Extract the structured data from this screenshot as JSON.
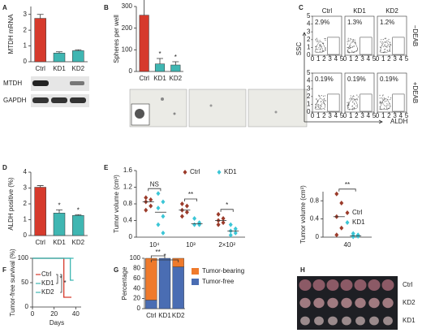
{
  "chart_data": [
    {
      "panel": "A",
      "type": "bar",
      "ylabel": "MTDH mRNA",
      "categories": [
        "Ctrl",
        "KD1",
        "KD2"
      ],
      "values": [
        2.75,
        0.55,
        0.7
      ],
      "errors": [
        0.25,
        0.08,
        0.06
      ],
      "colors": [
        "#d63a2c",
        "#3fb6b2",
        "#3fb6b2"
      ],
      "ylim": [
        0,
        3.5
      ],
      "yticks": [
        0,
        1,
        2,
        3
      ],
      "blot_labels": [
        "MTDH",
        "GAPDH"
      ]
    },
    {
      "panel": "B",
      "type": "bar",
      "ylabel": "Spheres per well",
      "categories": [
        "Ctrl",
        "KD1",
        "KD2"
      ],
      "values": [
        260,
        35,
        30
      ],
      "errors": [
        85,
        25,
        15
      ],
      "colors": [
        "#d63a2c",
        "#3fb6b2",
        "#3fb6b2"
      ],
      "significance": [
        null,
        "*",
        "*"
      ],
      "ylim": [
        0,
        300
      ],
      "yticks": [
        0,
        100,
        200,
        300
      ]
    },
    {
      "panel": "C",
      "type": "flow",
      "xlabel": "ALDH",
      "ylabel": "SSC",
      "columns": [
        "Ctrl",
        "KD1",
        "KD2"
      ],
      "rows": [
        "−DEAB",
        "+DEAB"
      ],
      "values": [
        [
          2.9,
          1.3,
          1.2
        ],
        [
          0.19,
          0.19,
          0.19
        ]
      ],
      "value_labels": [
        [
          "2.9%",
          "1.3%",
          "1.2%"
        ],
        [
          "0.19%",
          "0.19%",
          "0.19%"
        ]
      ],
      "xticks": [
        0,
        1,
        2,
        3,
        4,
        5
      ],
      "yticks": [
        0,
        1,
        2,
        3,
        4,
        5
      ],
      "xlim": [
        0,
        5
      ],
      "ylim": [
        0,
        5
      ]
    },
    {
      "panel": "D",
      "type": "bar",
      "ylabel": "ALDH positive (%)",
      "categories": [
        "Ctrl",
        "KD1",
        "KD2"
      ],
      "values": [
        3.05,
        1.42,
        1.27
      ],
      "errors": [
        0.1,
        0.2,
        0.05
      ],
      "colors": [
        "#d63a2c",
        "#3fb6b2",
        "#3fb6b2"
      ],
      "significance": [
        null,
        "*",
        "*"
      ],
      "ylim": [
        0,
        4
      ],
      "yticks": [
        0,
        1,
        2,
        3,
        4
      ]
    },
    {
      "panel": "E",
      "type": "strip",
      "ylabel": "Tumor volume (cm³)",
      "categories": [
        "10⁴",
        "10³",
        "2×10²"
      ],
      "series": [
        {
          "name": "Ctrl",
          "color": "#9b3b2a",
          "values": [
            [
              0.95,
              0.9,
              0.85,
              0.75,
              0.65
            ],
            [
              0.8,
              0.75,
              0.65,
              0.6,
              0.5
            ],
            [
              0.55,
              0.45,
              0.4,
              0.35,
              0.3
            ]
          ]
        },
        {
          "name": "KD1",
          "color": "#3cc6d6",
          "values": [
            [
              1.05,
              0.85,
              0.7,
              0.5,
              0.3,
              0.1
            ],
            [
              0.45,
              0.35,
              0.3,
              0.3
            ],
            [
              0.3,
              0.2,
              0.15,
              0.1,
              0.05
            ]
          ]
        }
      ],
      "significance": [
        "NS",
        "**",
        "*"
      ],
      "legend": "top",
      "ylim": [
        0,
        1.6
      ],
      "yticks": [
        0,
        0.4,
        0.8,
        1.2,
        1.6
      ]
    },
    {
      "type": "strip",
      "ylabel": "Tumor volume (cm³)",
      "categories": [
        "40"
      ],
      "series": [
        {
          "name": "Ctrl",
          "color": "#9b3b2a",
          "values": [
            [
              0.95,
              0.75,
              0.45,
              0.2,
              0.05
            ]
          ]
        },
        {
          "name": "KD1",
          "color": "#3cc6d6",
          "values": [
            [
              0.08,
              0.05,
              0.03,
              0.02,
              0.01
            ]
          ]
        }
      ],
      "significance": [
        "**"
      ],
      "legend": "right",
      "ylim": [
        0,
        1
      ],
      "yticks": [
        0,
        0.4,
        0.8
      ]
    },
    {
      "panel": "F",
      "type": "line",
      "ylabel": "Tumor-free survival (%)",
      "xlabel": "Days",
      "series": [
        {
          "name": "Ctrl",
          "color": "#d63a2c",
          "x": [
            0,
            29,
            29,
            36
          ],
          "values": [
            100,
            100,
            20,
            20
          ]
        },
        {
          "name": "KD1",
          "color": "#3fb6b2",
          "x": [
            0,
            38
          ],
          "values": [
            100,
            100
          ]
        },
        {
          "name": "KD2",
          "color": "#3fb6b2",
          "x": [
            0,
            35,
            35,
            38
          ],
          "values": [
            100,
            100,
            55,
            55
          ]
        }
      ],
      "significance": [
        "*",
        "*"
      ],
      "xlim": [
        0,
        45
      ],
      "xticks": [
        0,
        20,
        40
      ],
      "ylim": [
        0,
        100
      ],
      "yticks": [
        0,
        50,
        100
      ]
    },
    {
      "panel": "G",
      "type": "stacked_bar",
      "ylabel": "Percentage",
      "categories": [
        "Ctrl",
        "KD1",
        "KD2"
      ],
      "series": [
        {
          "name": "Tumor-free",
          "color": "#4a6db3",
          "values": [
            17,
            100,
            83
          ]
        },
        {
          "name": "Tumor-bearing",
          "color": "#ef7a2c",
          "values": [
            83,
            0,
            17
          ]
        }
      ],
      "significance": [
        null,
        "**",
        "*"
      ],
      "ylim": [
        0,
        100
      ],
      "yticks": [
        0,
        20,
        40,
        60,
        80,
        100
      ]
    },
    {
      "panel": "H",
      "type": "image",
      "row_labels": [
        "Ctrl",
        "KD2",
        "KD1"
      ]
    }
  ]
}
